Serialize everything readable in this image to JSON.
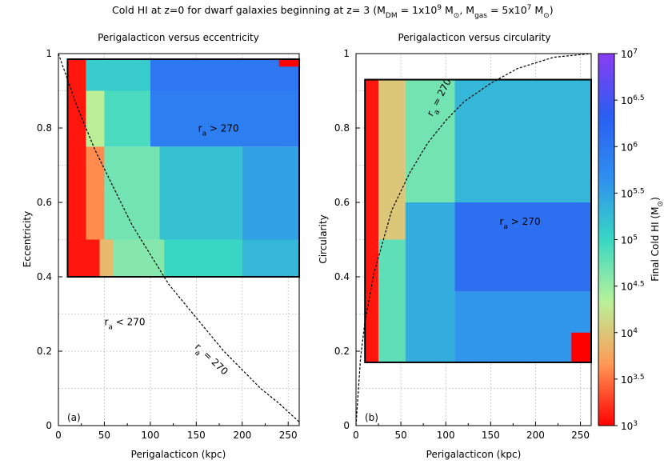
{
  "figure": {
    "suptitle": {
      "pre": "Cold HI at z=0 for dwarf galaxies beginning at z= 3 (M",
      "dm_sub": "DM",
      "mid1": " = 1x10",
      "dm_exp": "9",
      "mid2": " M",
      "sun1": "⊙",
      "mid3": ", M",
      "gas_sub": "gas",
      "mid4": " = 5x10",
      "gas_exp": "7",
      "mid5": " M",
      "sun2": "⊙",
      "post": ")"
    },
    "colorbar": {
      "label_pre": "Final Cold HI (M",
      "label_sun": "⊙",
      "label_post": ")",
      "range_log": [
        3,
        7
      ],
      "ticks": [
        {
          "base": "10",
          "exp": "3",
          "log": 3
        },
        {
          "base": "10",
          "exp": "3.5",
          "log": 3.5
        },
        {
          "base": "10",
          "exp": "4",
          "log": 4
        },
        {
          "base": "10",
          "exp": "4.5",
          "log": 4.5
        },
        {
          "base": "10",
          "exp": "5",
          "log": 5
        },
        {
          "base": "10",
          "exp": "5.5",
          "log": 5.5
        },
        {
          "base": "10",
          "exp": "6",
          "log": 6
        },
        {
          "base": "10",
          "exp": "6.5",
          "log": 6.5
        },
        {
          "base": "10",
          "exp": "7",
          "log": 7
        }
      ],
      "colormap": [
        "#ff0000",
        "#ff9a55",
        "#b8f29a",
        "#38d7c4",
        "#2f8ff0",
        "#2a5ef2",
        "#8a3cf2"
      ]
    }
  },
  "chart_data": [
    {
      "type": "heatmap",
      "title": "Perigalacticon versus eccentricity",
      "xlabel": "Perigalacticon (kpc)",
      "ylabel": "Eccentricity",
      "xlim": [
        0,
        262
      ],
      "ylim": [
        0,
        1
      ],
      "xticks": [
        "0",
        "50",
        "100",
        "150",
        "200",
        "250"
      ],
      "yticks": [
        "0",
        "0.2",
        "0.4",
        "0.6",
        "0.8",
        "1"
      ],
      "grid": true,
      "panel_label": "(a)",
      "data_region": {
        "x": [
          10,
          262
        ],
        "y": [
          0.4,
          0.985
        ]
      },
      "cells_log_mass": [
        {
          "x": [
            10,
            45
          ],
          "y": [
            0.4,
            0.5
          ],
          "v": 3.1
        },
        {
          "x": [
            45,
            60
          ],
          "y": [
            0.4,
            0.5
          ],
          "v": 3.9
        },
        {
          "x": [
            60,
            115
          ],
          "y": [
            0.4,
            0.5
          ],
          "v": 4.6
        },
        {
          "x": [
            115,
            200
          ],
          "y": [
            0.4,
            0.5
          ],
          "v": 5.0
        },
        {
          "x": [
            200,
            262
          ],
          "y": [
            0.4,
            0.5
          ],
          "v": 5.3
        },
        {
          "x": [
            10,
            30
          ],
          "y": [
            0.5,
            0.985
          ],
          "v": 3.1
        },
        {
          "x": [
            30,
            50
          ],
          "y": [
            0.5,
            0.75
          ],
          "v": 3.6
        },
        {
          "x": [
            50,
            110
          ],
          "y": [
            0.5,
            0.75
          ],
          "v": 4.7
        },
        {
          "x": [
            110,
            200
          ],
          "y": [
            0.5,
            0.75
          ],
          "v": 5.2
        },
        {
          "x": [
            200,
            262
          ],
          "y": [
            0.5,
            0.75
          ],
          "v": 5.5
        },
        {
          "x": [
            30,
            50
          ],
          "y": [
            0.75,
            0.9
          ],
          "v": 4.3
        },
        {
          "x": [
            50,
            100
          ],
          "y": [
            0.75,
            0.9
          ],
          "v": 4.9
        },
        {
          "x": [
            100,
            262
          ],
          "y": [
            0.75,
            0.9
          ],
          "v": 5.9
        },
        {
          "x": [
            30,
            100
          ],
          "y": [
            0.9,
            0.985
          ],
          "v": 5.1
        },
        {
          "x": [
            100,
            262
          ],
          "y": [
            0.9,
            0.985
          ],
          "v": 6.0
        },
        {
          "x": [
            240,
            262
          ],
          "y": [
            0.965,
            0.985
          ],
          "v": 3.0
        }
      ],
      "series": [
        {
          "name": "r_a = 270 curve",
          "x": [
            0,
            20,
            40,
            60,
            80,
            100,
            120,
            140,
            160,
            180,
            200,
            220,
            240,
            262
          ],
          "y": [
            1.0,
            0.86,
            0.74,
            0.64,
            0.54,
            0.46,
            0.38,
            0.32,
            0.26,
            0.2,
            0.15,
            0.1,
            0.06,
            0.01
          ]
        }
      ],
      "annotations": [
        {
          "text_pre": "r",
          "sub": "a",
          "text_post": " > 270",
          "x": 152,
          "y": 0.79
        },
        {
          "text_pre": "r",
          "sub": "a",
          "text_post": " < 270",
          "x": 50,
          "y": 0.27
        },
        {
          "text_pre": "r",
          "sub": "a",
          "text_post": " = 270",
          "x": 148,
          "y": 0.21,
          "rotate": 43
        }
      ]
    },
    {
      "type": "heatmap",
      "title": "Perigalacticon versus circularity",
      "xlabel": "Perigalacticon (kpc)",
      "ylabel": "Circularity",
      "xlim": [
        0,
        262
      ],
      "ylim": [
        0,
        1
      ],
      "xticks": [
        "0",
        "50",
        "100",
        "150",
        "200",
        "250"
      ],
      "yticks": [
        "0",
        "0.2",
        "0.4",
        "0.6",
        "0.8",
        "1"
      ],
      "grid": true,
      "panel_label": "(b)",
      "data_region": {
        "x": [
          10,
          262
        ],
        "y": [
          0.17,
          0.93
        ]
      },
      "cells_log_mass": [
        {
          "x": [
            10,
            25
          ],
          "y": [
            0.17,
            0.93
          ],
          "v": 3.1
        },
        {
          "x": [
            25,
            55
          ],
          "y": [
            0.5,
            0.93
          ],
          "v": 4.0
        },
        {
          "x": [
            25,
            55
          ],
          "y": [
            0.17,
            0.5
          ],
          "v": 4.8
        },
        {
          "x": [
            55,
            110
          ],
          "y": [
            0.6,
            0.93
          ],
          "v": 4.7
        },
        {
          "x": [
            55,
            110
          ],
          "y": [
            0.17,
            0.6
          ],
          "v": 5.4
        },
        {
          "x": [
            110,
            262
          ],
          "y": [
            0.6,
            0.93
          ],
          "v": 5.3
        },
        {
          "x": [
            110,
            262
          ],
          "y": [
            0.36,
            0.6
          ],
          "v": 6.1
        },
        {
          "x": [
            110,
            262
          ],
          "y": [
            0.17,
            0.36
          ],
          "v": 5.6
        },
        {
          "x": [
            240,
            262
          ],
          "y": [
            0.17,
            0.25
          ],
          "v": 3.0
        }
      ],
      "series": [
        {
          "name": "r_a = 270 curve",
          "x": [
            0,
            5,
            10,
            20,
            40,
            60,
            80,
            100,
            120,
            150,
            180,
            220,
            262
          ],
          "y": [
            0.0,
            0.18,
            0.28,
            0.41,
            0.58,
            0.68,
            0.76,
            0.82,
            0.87,
            0.92,
            0.96,
            0.99,
            1.0
          ]
        }
      ],
      "annotations": [
        {
          "text_pre": "r",
          "sub": "a",
          "text_post": " > 270",
          "x": 160,
          "y": 0.54
        },
        {
          "text_pre": "r",
          "sub": "a",
          "text_post": " = 270",
          "x": 85,
          "y": 0.83,
          "rotate": -62
        }
      ]
    }
  ]
}
